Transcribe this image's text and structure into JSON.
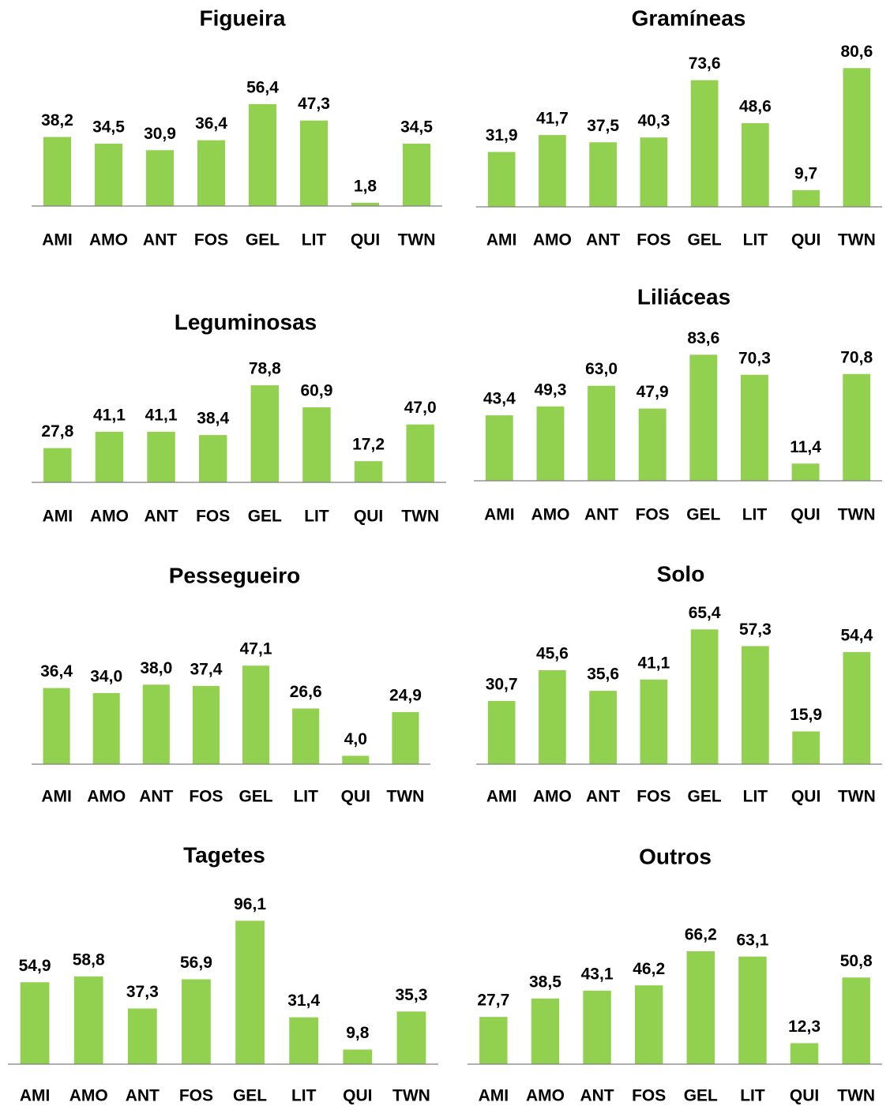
{
  "chart_data": [
    {
      "type": "bar",
      "title": "Figueira",
      "color": "#92d050",
      "categories": [
        "AMI",
        "AMO",
        "ANT",
        "FOS",
        "GEL",
        "LIT",
        "QUI",
        "TWN"
      ],
      "values": [
        38.2,
        34.5,
        30.9,
        36.4,
        56.4,
        47.3,
        1.8,
        34.5
      ],
      "value_labels": [
        "38,2",
        "34,5",
        "30,9",
        "36,4",
        "56,4",
        "47,3",
        "1,8",
        "34,5"
      ]
    },
    {
      "type": "bar",
      "title": "Gramíneas",
      "color": "#92d050",
      "categories": [
        "AMI",
        "AMO",
        "ANT",
        "FOS",
        "GEL",
        "LIT",
        "QUI",
        "TWN"
      ],
      "values": [
        31.9,
        41.7,
        37.5,
        40.3,
        73.6,
        48.6,
        9.7,
        80.6
      ],
      "value_labels": [
        "31,9",
        "41,7",
        "37,5",
        "40,3",
        "73,6",
        "48,6",
        "9,7",
        "80,6"
      ]
    },
    {
      "type": "bar",
      "title": "Leguminosas",
      "color": "#92d050",
      "categories": [
        "AMI",
        "AMO",
        "ANT",
        "FOS",
        "GEL",
        "LIT",
        "QUI",
        "TWN"
      ],
      "values": [
        27.8,
        41.1,
        41.1,
        38.4,
        78.8,
        60.9,
        17.2,
        47.0
      ],
      "value_labels": [
        "27,8",
        "41,1",
        "41,1",
        "38,4",
        "78,8",
        "60,9",
        "17,2",
        "47,0"
      ]
    },
    {
      "type": "bar",
      "title": "Liliáceas",
      "color": "#92d050",
      "categories": [
        "AMI",
        "AMO",
        "ANT",
        "FOS",
        "GEL",
        "LIT",
        "QUI",
        "TWN"
      ],
      "values": [
        43.4,
        49.3,
        63.0,
        47.9,
        83.6,
        70.3,
        11.4,
        70.8
      ],
      "value_labels": [
        "43,4",
        "49,3",
        "63,0",
        "47,9",
        "83,6",
        "70,3",
        "11,4",
        "70,8"
      ]
    },
    {
      "type": "bar",
      "title": "Pessegueiro",
      "color": "#92d050",
      "categories": [
        "AMI",
        "AMO",
        "ANT",
        "FOS",
        "GEL",
        "LIT",
        "QUI",
        "TWN"
      ],
      "values": [
        36.4,
        34.0,
        38.0,
        37.4,
        47.1,
        26.6,
        4.0,
        24.9
      ],
      "value_labels": [
        "36,4",
        "34,0",
        "38,0",
        "37,4",
        "47,1",
        "26,6",
        "4,0",
        "24,9"
      ]
    },
    {
      "type": "bar",
      "title": "Solo",
      "color": "#92d050",
      "categories": [
        "AMI",
        "AMO",
        "ANT",
        "FOS",
        "GEL",
        "LIT",
        "QUI",
        "TWN"
      ],
      "values": [
        30.7,
        45.6,
        35.6,
        41.1,
        65.4,
        57.3,
        15.9,
        54.4
      ],
      "value_labels": [
        "30,7",
        "45,6",
        "35,6",
        "41,1",
        "65,4",
        "57,3",
        "15,9",
        "54,4"
      ]
    },
    {
      "type": "bar",
      "title": "Tagetes",
      "color": "#92d050",
      "categories": [
        "AMI",
        "AMO",
        "ANT",
        "FOS",
        "GEL",
        "LIT",
        "QUI",
        "TWN"
      ],
      "values": [
        54.9,
        58.8,
        37.3,
        56.9,
        96.1,
        31.4,
        9.8,
        35.3
      ],
      "value_labels": [
        "54,9",
        "58,8",
        "37,3",
        "56,9",
        "96,1",
        "31,4",
        "9,8",
        "35,3"
      ]
    },
    {
      "type": "bar",
      "title": "Outros",
      "color": "#92d050",
      "categories": [
        "AMI",
        "AMO",
        "ANT",
        "FOS",
        "GEL",
        "LIT",
        "QUI",
        "TWN"
      ],
      "values": [
        27.7,
        38.5,
        43.1,
        46.2,
        66.2,
        63.1,
        12.3,
        50.8
      ],
      "value_labels": [
        "27,7",
        "38,5",
        "43,1",
        "46,2",
        "66,2",
        "63,1",
        "12,3",
        "50,8"
      ]
    }
  ]
}
